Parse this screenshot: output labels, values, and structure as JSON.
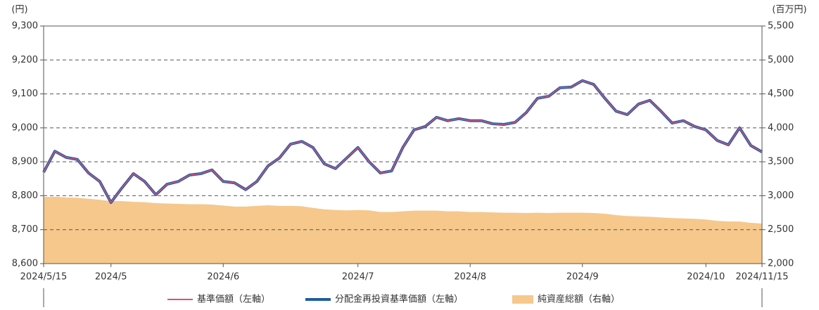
{
  "chart_data": {
    "type": "line",
    "y_label": "(円)",
    "y2_label": "(百万円)",
    "categories": [
      "2024/5/15",
      null,
      null,
      null,
      null,
      null,
      "2024/5",
      null,
      null,
      null,
      null,
      null,
      null,
      null,
      null,
      null,
      "2024/6",
      null,
      null,
      null,
      null,
      null,
      null,
      null,
      null,
      null,
      null,
      null,
      "2024/7",
      null,
      null,
      null,
      null,
      null,
      null,
      null,
      null,
      null,
      "2024/8",
      null,
      null,
      null,
      null,
      null,
      null,
      null,
      null,
      null,
      "2024/9",
      null,
      null,
      null,
      null,
      null,
      null,
      null,
      null,
      null,
      null,
      "2024/10",
      null,
      null,
      null,
      null,
      "2024/11/15"
    ],
    "series": [
      {
        "name": "基準価額（左軸）",
        "color": "#d9507f",
        "axis": "y",
        "kind": "line",
        "values": [
          8869,
          8931,
          8913,
          8907,
          8867,
          8842,
          8780,
          8824,
          8865,
          8842,
          8803,
          8834,
          8842,
          8861,
          8865,
          8876,
          8842,
          8838,
          8818,
          8842,
          8888,
          8911,
          8952,
          8960,
          8942,
          8894,
          8880,
          8911,
          8942,
          8900,
          8867,
          8873,
          8942,
          8994,
          9004,
          9031,
          9021,
          9027,
          9021,
          9021,
          9012,
          9010,
          9016,
          9045,
          9087,
          9093,
          9118,
          9120,
          9139,
          9128,
          9087,
          9049,
          9039,
          9070,
          9081,
          9049,
          9014,
          9021,
          9004,
          8994,
          8963,
          8950,
          9000,
          8948,
          8929
        ]
      },
      {
        "name": "分配金再投資基準価額（左軸）",
        "color": "#1f5d9e",
        "axis": "y",
        "kind": "line",
        "values": [
          8869,
          8931,
          8913,
          8907,
          8867,
          8842,
          8780,
          8824,
          8865,
          8842,
          8803,
          8834,
          8842,
          8861,
          8865,
          8876,
          8842,
          8838,
          8818,
          8842,
          8888,
          8911,
          8952,
          8960,
          8942,
          8894,
          8880,
          8911,
          8942,
          8900,
          8867,
          8873,
          8942,
          8994,
          9004,
          9031,
          9021,
          9027,
          9021,
          9021,
          9012,
          9010,
          9016,
          9045,
          9087,
          9093,
          9118,
          9120,
          9139,
          9128,
          9087,
          9049,
          9039,
          9070,
          9081,
          9049,
          9014,
          9021,
          9004,
          8994,
          8963,
          8950,
          9000,
          8948,
          8929
        ]
      },
      {
        "name": "純資産総額（右軸）",
        "color": "#f6c88c",
        "axis": "y2",
        "kind": "area",
        "values": [
          2980,
          2985,
          2975,
          2970,
          2955,
          2940,
          2920,
          2920,
          2910,
          2905,
          2890,
          2885,
          2880,
          2875,
          2875,
          2870,
          2855,
          2840,
          2840,
          2850,
          2860,
          2850,
          2850,
          2845,
          2820,
          2800,
          2790,
          2785,
          2790,
          2785,
          2760,
          2760,
          2770,
          2780,
          2780,
          2780,
          2770,
          2770,
          2760,
          2760,
          2755,
          2750,
          2750,
          2745,
          2750,
          2745,
          2750,
          2750,
          2750,
          2745,
          2735,
          2715,
          2700,
          2695,
          2690,
          2680,
          2670,
          2665,
          2660,
          2650,
          2630,
          2620,
          2620,
          2600,
          2590
        ]
      }
    ],
    "ylim": [
      8600,
      9300
    ],
    "yticks": [
      {
        "value": 8600,
        "label": "8,600"
      },
      {
        "value": 8700,
        "label": "8,700"
      },
      {
        "value": 8800,
        "label": "8,800"
      },
      {
        "value": 8900,
        "label": "8,900"
      },
      {
        "value": 9000,
        "label": "9,000"
      },
      {
        "value": 9100,
        "label": "9,100"
      },
      {
        "value": 9200,
        "label": "9,200"
      },
      {
        "value": 9300,
        "label": "9,300"
      }
    ],
    "y2lim": [
      2000,
      5500
    ],
    "y2ticks": [
      {
        "value": 2000,
        "label": "2,000"
      },
      {
        "value": 2500,
        "label": "2,500"
      },
      {
        "value": 3000,
        "label": "3,000"
      },
      {
        "value": 3500,
        "label": "3,500"
      },
      {
        "value": 4000,
        "label": "4,000"
      },
      {
        "value": 4500,
        "label": "4,500"
      },
      {
        "value": 5000,
        "label": "5,000"
      },
      {
        "value": 5500,
        "label": "5,500"
      }
    ],
    "grid": true,
    "legend": "bottom"
  }
}
